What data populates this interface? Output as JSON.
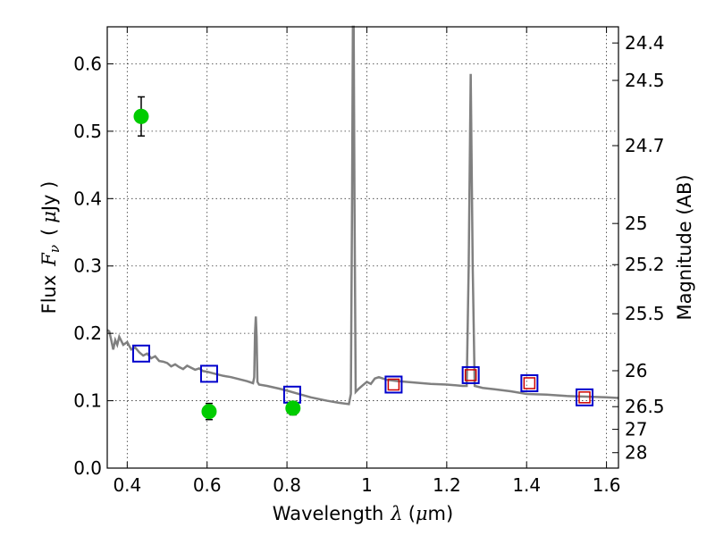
{
  "chart_data": {
    "type": "scatter",
    "xlabel_text": "Wavelength",
    "xlabel_lambda": "λ",
    "xlabel_unit_open": "(",
    "xlabel_unit_mu": "μ",
    "xlabel_unit_rest": "m)",
    "ylabel_text": "Flux",
    "ylabel_F": "F",
    "ylabel_sub": "ν",
    "ylabel_unit_open": "(",
    "ylabel_unit_mu": "μ",
    "ylabel_unit_rest": "Jy )",
    "y2label": "Magnitude (AB)",
    "xlim": [
      0.35,
      1.63
    ],
    "ylim": [
      0.0,
      0.655
    ],
    "xticks": [
      {
        "v": 0.4,
        "label": "0.4"
      },
      {
        "v": 0.6,
        "label": "0.6"
      },
      {
        "v": 0.8,
        "label": "0.8"
      },
      {
        "v": 1.0,
        "label": "1"
      },
      {
        "v": 1.2,
        "label": "1.2"
      },
      {
        "v": 1.4,
        "label": "1.4"
      },
      {
        "v": 1.6,
        "label": "1.6"
      }
    ],
    "yticks": [
      {
        "v": 0.0,
        "label": "0.0"
      },
      {
        "v": 0.1,
        "label": "0.1"
      },
      {
        "v": 0.2,
        "label": "0.2"
      },
      {
        "v": 0.3,
        "label": "0.3"
      },
      {
        "v": 0.4,
        "label": "0.4"
      },
      {
        "v": 0.5,
        "label": "0.5"
      },
      {
        "v": 0.6,
        "label": "0.6"
      }
    ],
    "y2ticks": [
      {
        "mag": 24.4,
        "label": "24.4"
      },
      {
        "mag": 24.5,
        "label": "24.5"
      },
      {
        "mag": 24.7,
        "label": "24.7"
      },
      {
        "mag": 25.0,
        "label": "25"
      },
      {
        "mag": 25.2,
        "label": "25.2"
      },
      {
        "mag": 25.5,
        "label": "25.5"
      },
      {
        "mag": 26.0,
        "label": "26"
      },
      {
        "mag": 26.5,
        "label": "26.5"
      },
      {
        "mag": 27.0,
        "label": "27"
      },
      {
        "mag": 28.0,
        "label": "28"
      }
    ],
    "grid": true,
    "colors": {
      "spectrum": "#808080",
      "observed": "#00cc00",
      "errorbar": "#000000",
      "model_all": "#0000cc",
      "model_nir": "#cc0000"
    },
    "spectrum": [
      [
        0.35,
        0.205
      ],
      [
        0.355,
        0.203
      ],
      [
        0.36,
        0.19
      ],
      [
        0.365,
        0.176
      ],
      [
        0.37,
        0.19
      ],
      [
        0.375,
        0.183
      ],
      [
        0.38,
        0.195
      ],
      [
        0.39,
        0.183
      ],
      [
        0.4,
        0.187
      ],
      [
        0.41,
        0.176
      ],
      [
        0.42,
        0.179
      ],
      [
        0.43,
        0.172
      ],
      [
        0.44,
        0.167
      ],
      [
        0.45,
        0.17
      ],
      [
        0.46,
        0.163
      ],
      [
        0.47,
        0.166
      ],
      [
        0.48,
        0.159
      ],
      [
        0.49,
        0.158
      ],
      [
        0.5,
        0.156
      ],
      [
        0.51,
        0.151
      ],
      [
        0.52,
        0.154
      ],
      [
        0.53,
        0.15
      ],
      [
        0.54,
        0.147
      ],
      [
        0.55,
        0.152
      ],
      [
        0.56,
        0.149
      ],
      [
        0.57,
        0.146
      ],
      [
        0.58,
        0.148
      ],
      [
        0.59,
        0.144
      ],
      [
        0.6,
        0.143
      ],
      [
        0.62,
        0.14
      ],
      [
        0.64,
        0.137
      ],
      [
        0.66,
        0.135
      ],
      [
        0.68,
        0.132
      ],
      [
        0.7,
        0.129
      ],
      [
        0.715,
        0.126
      ],
      [
        0.718,
        0.135
      ],
      [
        0.72,
        0.2
      ],
      [
        0.722,
        0.225
      ],
      [
        0.724,
        0.195
      ],
      [
        0.726,
        0.128
      ],
      [
        0.73,
        0.124
      ],
      [
        0.75,
        0.122
      ],
      [
        0.78,
        0.118
      ],
      [
        0.8,
        0.115
      ],
      [
        0.83,
        0.11
      ],
      [
        0.86,
        0.105
      ],
      [
        0.9,
        0.1
      ],
      [
        0.93,
        0.097
      ],
      [
        0.955,
        0.095
      ],
      [
        0.96,
        0.11
      ],
      [
        0.963,
        0.4
      ],
      [
        0.965,
        0.66
      ],
      [
        0.967,
        0.66
      ],
      [
        0.969,
        0.4
      ],
      [
        0.972,
        0.113
      ],
      [
        0.98,
        0.118
      ],
      [
        0.99,
        0.123
      ],
      [
        1.0,
        0.128
      ],
      [
        1.01,
        0.125
      ],
      [
        1.02,
        0.133
      ],
      [
        1.03,
        0.135
      ],
      [
        1.05,
        0.131
      ],
      [
        1.08,
        0.129
      ],
      [
        1.12,
        0.127
      ],
      [
        1.16,
        0.125
      ],
      [
        1.2,
        0.124
      ],
      [
        1.24,
        0.122
      ],
      [
        1.25,
        0.122
      ],
      [
        1.255,
        0.3
      ],
      [
        1.26,
        0.585
      ],
      [
        1.265,
        0.3
      ],
      [
        1.27,
        0.122
      ],
      [
        1.29,
        0.119
      ],
      [
        1.32,
        0.117
      ],
      [
        1.36,
        0.114
      ],
      [
        1.4,
        0.11
      ],
      [
        1.45,
        0.109
      ],
      [
        1.5,
        0.107
      ],
      [
        1.55,
        0.106
      ],
      [
        1.6,
        0.105
      ],
      [
        1.63,
        0.104
      ]
    ],
    "observed_points": [
      {
        "x": 0.435,
        "y": 0.522,
        "err": 0.029
      },
      {
        "x": 0.605,
        "y": 0.084,
        "err": 0.012
      },
      {
        "x": 0.815,
        "y": 0.089,
        "err": 0.01
      }
    ],
    "model_points": [
      {
        "x": 0.435,
        "y": 0.17,
        "nir": false
      },
      {
        "x": 0.605,
        "y": 0.14,
        "nir": false
      },
      {
        "x": 0.813,
        "y": 0.109,
        "nir": false
      },
      {
        "x": 1.067,
        "y": 0.124,
        "nir": true
      },
      {
        "x": 1.26,
        "y": 0.138,
        "nir": true
      },
      {
        "x": 1.407,
        "y": 0.126,
        "nir": true
      },
      {
        "x": 1.545,
        "y": 0.105,
        "nir": true
      }
    ]
  }
}
